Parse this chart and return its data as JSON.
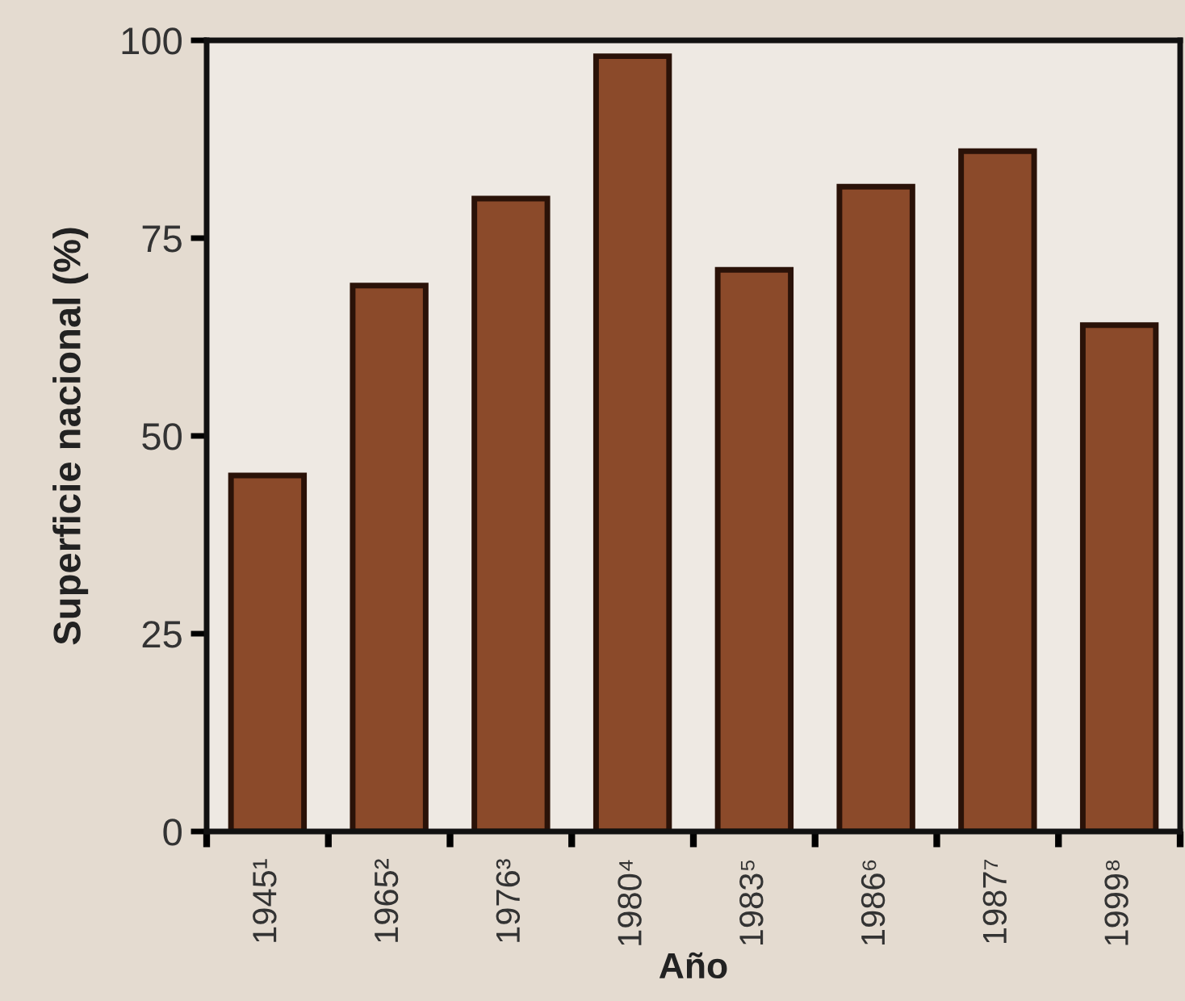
{
  "chart_data": {
    "type": "bar",
    "xlabel": "Año",
    "ylabel": "Superficie nacional (%)",
    "categories": [
      "1945¹",
      "1965²",
      "1976³",
      "1980⁴",
      "1983⁵",
      "1986⁶",
      "1987⁷",
      "1999⁸"
    ],
    "values": [
      45,
      69,
      80,
      98,
      71,
      81.5,
      86,
      64
    ],
    "color": "#8b4a2a",
    "ylim": [
      0,
      100
    ],
    "yticks": [
      0,
      25,
      50,
      75,
      100
    ],
    "grid": false
  }
}
